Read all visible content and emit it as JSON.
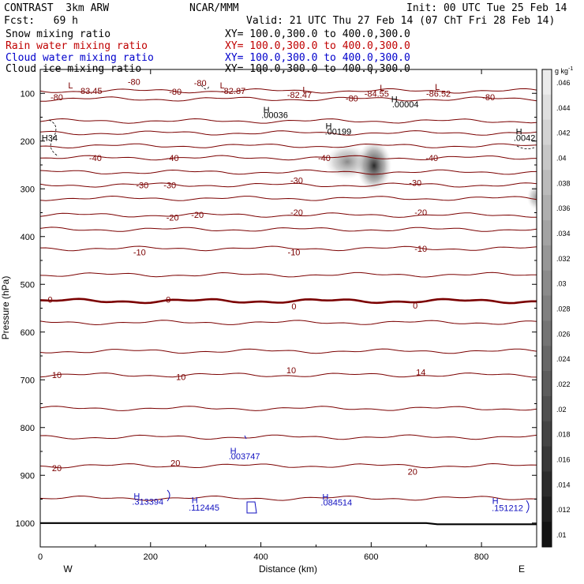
{
  "header": {
    "model": "CONTRAST  3km ARW",
    "center": "NCAR/MMM",
    "init": "Init: 00 UTC Tue 25 Feb 14",
    "fcst": "Fcst:   69 h",
    "valid": "Valid: 21 UTC Thu 27 Feb 14 (07 ChT Fri 28 Feb 14)"
  },
  "fields": [
    {
      "name": "Snow mixing ratio",
      "xy": "XY= 100.0,300.0 to 400.0,300.0",
      "color": "#000000"
    },
    {
      "name": "Rain water mixing ratio",
      "xy": "XY= 100.0,300.0 to 400.0,300.0",
      "color": "#c00000"
    },
    {
      "name": "Cloud water mixing ratio",
      "xy": "XY= 100.0,300.0 to 400.0,300.0",
      "color": "#0000cc"
    },
    {
      "name": "Cloud ice mixing ratio",
      "xy": "XY= 100.0,300.0 to 400.0,300.0",
      "color": "#000000"
    }
  ],
  "colors": {
    "temperature": "#7b0000",
    "cloud_water": "#1010c0",
    "ground": "#000000"
  },
  "chart_data": {
    "type": "contour",
    "xlabel": "Distance (km)",
    "ylabel": "Pressure (hPa)",
    "xlim": [
      0,
      900
    ],
    "ylim": [
      1050,
      50
    ],
    "x_ticks": [
      "0",
      "200",
      "400",
      "600",
      "800"
    ],
    "y_ticks": [
      "100",
      "200",
      "300",
      "400",
      "500",
      "600",
      "700",
      "800",
      "900",
      "1000"
    ],
    "direction_left": "W",
    "direction_right": "E",
    "temperature_contours": [
      {
        "p": 95,
        "label": "-80"
      },
      {
        "p": 112,
        "label": "-80"
      },
      {
        "p": 158,
        "label": ""
      },
      {
        "p": 183,
        "label": ""
      },
      {
        "p": 210,
        "label": ""
      },
      {
        "p": 235,
        "label": "-40"
      },
      {
        "p": 265,
        "label": ""
      },
      {
        "p": 292,
        "label": "-30"
      },
      {
        "p": 320,
        "label": ""
      },
      {
        "p": 355,
        "label": "-20"
      },
      {
        "p": 385,
        "label": ""
      },
      {
        "p": 425,
        "label": "-10"
      },
      {
        "p": 480,
        "label": ""
      },
      {
        "p": 535,
        "label": "0"
      },
      {
        "p": 580,
        "label": ""
      },
      {
        "p": 640,
        "label": ""
      },
      {
        "p": 690,
        "label": "10"
      },
      {
        "p": 760,
        "label": ""
      },
      {
        "p": 820,
        "label": ""
      },
      {
        "p": 880,
        "label": "20"
      },
      {
        "p": 948,
        "label": ""
      }
    ],
    "labels": [
      {
        "x": 55,
        "p": 83,
        "text": "L",
        "color": "temperature"
      },
      {
        "x": 90,
        "p": 95,
        "text": "-83.45",
        "color": "temperature"
      },
      {
        "x": 170,
        "p": 76,
        "text": "-80",
        "color": "temperature"
      },
      {
        "x": 290,
        "p": 78,
        "text": "-80",
        "color": "temperature"
      },
      {
        "x": 330,
        "p": 83,
        "text": "L",
        "color": "temperature"
      },
      {
        "x": 350,
        "p": 95,
        "text": "-82.87",
        "color": "temperature"
      },
      {
        "x": 245,
        "p": 96,
        "text": "-80",
        "color": "temperature"
      },
      {
        "x": 30,
        "p": 108,
        "text": "-80",
        "color": "temperature"
      },
      {
        "x": 480,
        "p": 92,
        "text": "L",
        "color": "temperature"
      },
      {
        "x": 470,
        "p": 103,
        "text": "-82.47",
        "color": "temperature"
      },
      {
        "x": 565,
        "p": 110,
        "text": "-80",
        "color": "temperature"
      },
      {
        "x": 620,
        "p": 88,
        "text": "L",
        "color": "temperature"
      },
      {
        "x": 610,
        "p": 100,
        "text": "-84.55",
        "color": "temperature"
      },
      {
        "x": 720,
        "p": 86,
        "text": "L",
        "color": "temperature"
      },
      {
        "x": 722,
        "p": 100,
        "text": "-86.52",
        "color": "temperature"
      },
      {
        "x": 813,
        "p": 108,
        "text": "-80",
        "color": "temperature"
      },
      {
        "x": 642,
        "p": 112,
        "text": "H",
        "color": "ground"
      },
      {
        "x": 662,
        "p": 123,
        "text": ".00004",
        "color": "ground"
      },
      {
        "x": 410,
        "p": 134,
        "text": "H",
        "color": "ground"
      },
      {
        "x": 425,
        "p": 145,
        "text": ".00036",
        "color": "ground"
      },
      {
        "x": 523,
        "p": 168,
        "text": "H",
        "color": "ground"
      },
      {
        "x": 540,
        "p": 180,
        "text": ".00199",
        "color": "ground"
      },
      {
        "x": 868,
        "p": 180,
        "text": "H",
        "color": "ground"
      },
      {
        "x": 878,
        "p": 193,
        "text": ".0042",
        "color": "ground"
      },
      {
        "x": 17,
        "p": 193,
        "text": "H34",
        "color": "ground"
      },
      {
        "x": 100,
        "p": 235,
        "text": "-40",
        "color": "temperature"
      },
      {
        "x": 240,
        "p": 235,
        "text": "-40",
        "color": "temperature"
      },
      {
        "x": 515,
        "p": 235,
        "text": "-40",
        "color": "temperature"
      },
      {
        "x": 710,
        "p": 235,
        "text": "-40",
        "color": "temperature"
      },
      {
        "x": 185,
        "p": 292,
        "text": "-30",
        "color": "temperature"
      },
      {
        "x": 235,
        "p": 292,
        "text": "-30",
        "color": "temperature"
      },
      {
        "x": 465,
        "p": 282,
        "text": "-30",
        "color": "temperature"
      },
      {
        "x": 680,
        "p": 287,
        "text": "-30",
        "color": "temperature"
      },
      {
        "x": 240,
        "p": 360,
        "text": "-20",
        "color": "temperature"
      },
      {
        "x": 285,
        "p": 354,
        "text": "-20",
        "color": "temperature"
      },
      {
        "x": 465,
        "p": 349,
        "text": "-20",
        "color": "temperature"
      },
      {
        "x": 690,
        "p": 349,
        "text": "-20",
        "color": "temperature"
      },
      {
        "x": 180,
        "p": 433,
        "text": "-10",
        "color": "temperature"
      },
      {
        "x": 460,
        "p": 433,
        "text": "-10",
        "color": "temperature"
      },
      {
        "x": 690,
        "p": 425,
        "text": "-10",
        "color": "temperature"
      },
      {
        "x": 18,
        "p": 532,
        "text": "0",
        "color": "temperature"
      },
      {
        "x": 232,
        "p": 532,
        "text": "0",
        "color": "temperature"
      },
      {
        "x": 460,
        "p": 546,
        "text": "0",
        "color": "temperature"
      },
      {
        "x": 680,
        "p": 544,
        "text": "0",
        "color": "temperature"
      },
      {
        "x": 30,
        "p": 690,
        "text": "10",
        "color": "temperature"
      },
      {
        "x": 255,
        "p": 694,
        "text": "10",
        "color": "temperature"
      },
      {
        "x": 455,
        "p": 680,
        "text": "10",
        "color": "temperature"
      },
      {
        "x": 690,
        "p": 684,
        "text": "14",
        "color": "temperature"
      },
      {
        "x": 30,
        "p": 885,
        "text": "20",
        "color": "temperature"
      },
      {
        "x": 245,
        "p": 874,
        "text": "20",
        "color": "temperature"
      },
      {
        "x": 675,
        "p": 892,
        "text": "20",
        "color": "temperature"
      },
      {
        "x": 350,
        "p": 848,
        "text": "H",
        "color": "cloud_water"
      },
      {
        "x": 370,
        "p": 860,
        "text": ".003747",
        "color": "cloud_water"
      },
      {
        "x": 175,
        "p": 943,
        "text": "H",
        "color": "cloud_water"
      },
      {
        "x": 195,
        "p": 955,
        "text": ".313394",
        "color": "cloud_water"
      },
      {
        "x": 280,
        "p": 952,
        "text": "H",
        "color": "cloud_water"
      },
      {
        "x": 297,
        "p": 967,
        "text": ".112445",
        "color": "cloud_water"
      },
      {
        "x": 517,
        "p": 945,
        "text": "H",
        "color": "cloud_water"
      },
      {
        "x": 537,
        "p": 957,
        "text": ".084514",
        "color": "cloud_water"
      },
      {
        "x": 825,
        "p": 953,
        "text": "H",
        "color": "cloud_water"
      },
      {
        "x": 847,
        "p": 968,
        "text": ".151212",
        "color": "cloud_water"
      }
    ],
    "colorbar": {
      "unit": "g kg",
      "unit_exponent": "-1",
      "ticks": [
        ".046",
        ".044",
        ".042",
        ".04",
        ".038",
        ".036",
        ".034",
        ".032",
        ".03",
        ".028",
        ".026",
        ".024",
        ".022",
        ".02",
        ".018",
        ".016",
        ".014",
        ".012",
        ".01"
      ]
    }
  }
}
